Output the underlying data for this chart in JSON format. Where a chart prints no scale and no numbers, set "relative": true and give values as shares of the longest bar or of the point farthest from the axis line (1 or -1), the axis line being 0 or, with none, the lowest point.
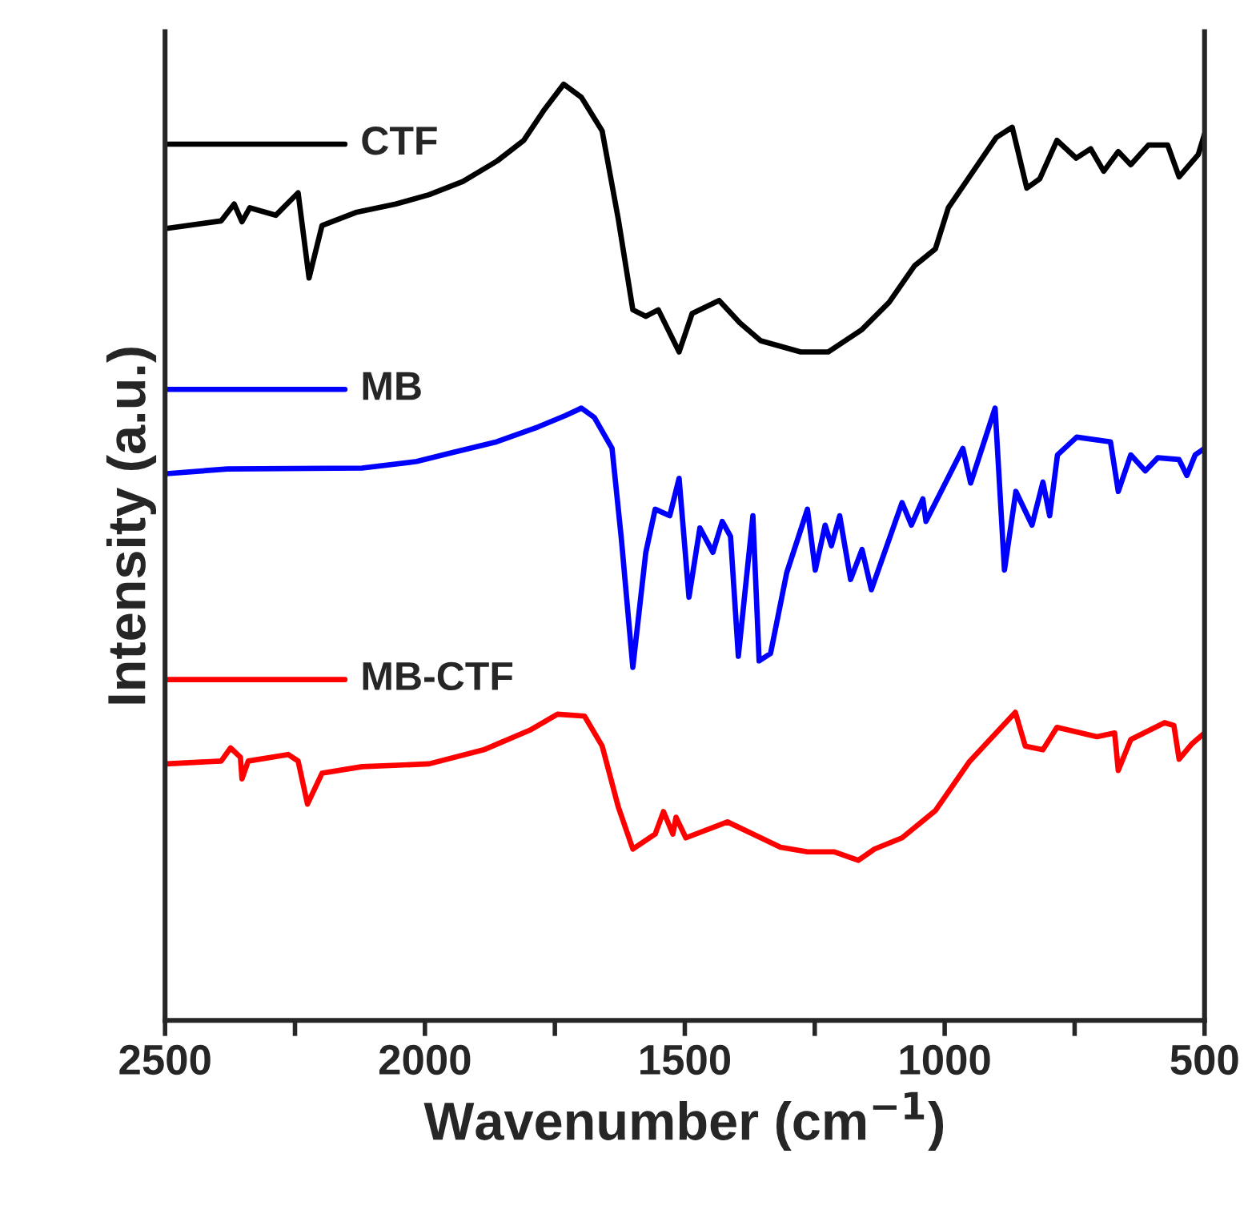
{
  "chart_data": {
    "type": "line",
    "relative": true,
    "xlabel": "Wavenumber (cm$^{−1}$)",
    "ylabel": "Intensity (a.u.)",
    "xlim": [
      2500,
      500
    ],
    "xticks": [
      2500,
      {
        "value": 2250,
        "label": null
      },
      2000,
      {
        "value": 1750,
        "label": null
      },
      1500,
      {
        "value": 1250,
        "label": null
      },
      1000,
      {
        "value": 750,
        "label": null
      },
      500
    ],
    "tick_labels": "x",
    "grid": false,
    "legend": "top left",
    "series": [
      {
        "name": "CTF",
        "color": "#000000",
        "x": [
          2497,
          2392,
          2367,
          2352,
          2337,
          2287,
          2244,
          2223,
          2198,
          2133,
          2056,
          1992,
          1927,
          1861,
          1810,
          1770,
          1733,
          1699,
          1659,
          1628,
          1600,
          1575,
          1551,
          1511,
          1486,
          1434,
          1394,
          1354,
          1277,
          1224,
          1159,
          1107,
          1058,
          1018,
          993,
          901,
          870,
          842,
          817,
          784,
          747,
          719,
          694,
          666,
          642,
          608,
          571,
          549,
          512,
          500
        ],
        "values": [
          0.846,
          0.854,
          0.872,
          0.853,
          0.868,
          0.86,
          0.884,
          0.793,
          0.849,
          0.863,
          0.872,
          0.882,
          0.896,
          0.918,
          0.94,
          0.973,
          1.0,
          0.986,
          0.95,
          0.856,
          0.759,
          0.752,
          0.759,
          0.714,
          0.755,
          0.769,
          0.745,
          0.726,
          0.714,
          0.714,
          0.738,
          0.767,
          0.806,
          0.824,
          0.868,
          0.943,
          0.954,
          0.889,
          0.899,
          0.94,
          0.921,
          0.931,
          0.907,
          0.928,
          0.914,
          0.935,
          0.935,
          0.901,
          0.925,
          0.947
        ]
      },
      {
        "name": "MB",
        "color": "#0000ff",
        "x": [
          2497,
          2380,
          2121,
          2016,
          1951,
          1862,
          1782,
          1730,
          1699,
          1674,
          1640,
          1622,
          1600,
          1575,
          1557,
          1529,
          1511,
          1492,
          1471,
          1446,
          1428,
          1412,
          1397,
          1369,
          1357,
          1335,
          1304,
          1264,
          1249,
          1230,
          1218,
          1202,
          1181,
          1159,
          1141,
          1082,
          1064,
          1042,
          1036,
          965,
          950,
          903,
          885,
          863,
          832,
          811,
          798,
          783,
          746,
          681,
          666,
          642,
          614,
          590,
          549,
          534,
          518,
          500
        ],
        "values": [
          0.584,
          0.589,
          0.59,
          0.597,
          0.606,
          0.618,
          0.634,
          0.646,
          0.654,
          0.644,
          0.611,
          0.514,
          0.377,
          0.5,
          0.546,
          0.539,
          0.579,
          0.452,
          0.526,
          0.5,
          0.533,
          0.517,
          0.389,
          0.539,
          0.384,
          0.392,
          0.478,
          0.546,
          0.481,
          0.529,
          0.507,
          0.539,
          0.471,
          0.503,
          0.46,
          0.553,
          0.529,
          0.557,
          0.533,
          0.611,
          0.574,
          0.654,
          0.481,
          0.565,
          0.529,
          0.575,
          0.539,
          0.604,
          0.623,
          0.618,
          0.565,
          0.604,
          0.587,
          0.601,
          0.599,
          0.582,
          0.604,
          0.611
        ]
      },
      {
        "name": "MB-CTF",
        "color": "#ff0000",
        "x": [
          2497,
          2392,
          2374,
          2355,
          2352,
          2340,
          2263,
          2244,
          2226,
          2198,
          2121,
          1992,
          1887,
          1798,
          1745,
          1693,
          1659,
          1628,
          1600,
          1557,
          1541,
          1523,
          1517,
          1498,
          1418,
          1369,
          1316,
          1264,
          1212,
          1166,
          1135,
          1082,
          1018,
          953,
          901,
          864,
          845,
          811,
          784,
          707,
          673,
          666,
          642,
          577,
          559,
          549,
          525,
          500
        ],
        "values": [
          0.274,
          0.277,
          0.291,
          0.281,
          0.258,
          0.277,
          0.284,
          0.277,
          0.231,
          0.264,
          0.271,
          0.274,
          0.289,
          0.31,
          0.327,
          0.325,
          0.293,
          0.228,
          0.183,
          0.199,
          0.223,
          0.199,
          0.217,
          0.195,
          0.212,
          0.199,
          0.185,
          0.18,
          0.18,
          0.171,
          0.183,
          0.195,
          0.224,
          0.276,
          0.307,
          0.329,
          0.293,
          0.289,
          0.313,
          0.303,
          0.307,
          0.267,
          0.3,
          0.318,
          0.315,
          0.279,
          0.295,
          0.307
        ]
      }
    ]
  }
}
